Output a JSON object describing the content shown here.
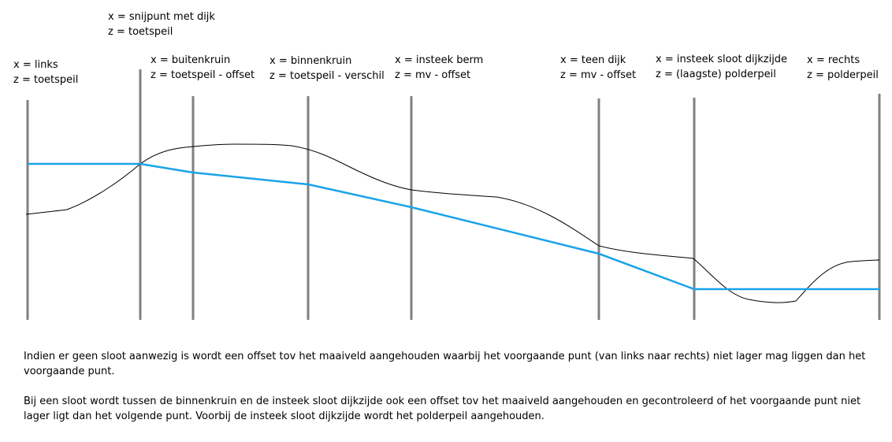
{
  "diagram": {
    "colors": {
      "guide_line": "#808080",
      "terrain_line": "#000000",
      "offset_line": "#1aa3e8"
    },
    "markers": [
      {
        "id": "links",
        "x_label": "x = links",
        "z_label": "z = toetspeil"
      },
      {
        "id": "snijpunt",
        "x_label": "x = snijpunt met dijk",
        "z_label": "z = toetspeil"
      },
      {
        "id": "buitenkruin",
        "x_label": "x = buitenkruin",
        "z_label": "z = toetspeil - offset"
      },
      {
        "id": "binnenkruin",
        "x_label": "x = binnenkruin",
        "z_label": "z = toetspeil - verschil"
      },
      {
        "id": "insteek-berm",
        "x_label": "x = insteek berm",
        "z_label": "z = mv - offset"
      },
      {
        "id": "teen-dijk",
        "x_label": "x = teen dijk",
        "z_label": "z = mv - offset"
      },
      {
        "id": "insteek-sloot",
        "x_label": "x = insteek sloot dijkzijde",
        "z_label": "z = (laagste) polderpeil"
      },
      {
        "id": "rechts",
        "x_label": "x = rechts",
        "z_label": "z = polderpeil"
      }
    ]
  },
  "notes": {
    "paragraph1": "Indien er geen sloot aanwezig is wordt een offset tov het maaiveld aangehouden waarbij het voorgaande punt (van links naar rechts) niet lager mag liggen dan het voorgaande punt.",
    "paragraph2": "Bij een sloot wordt tussen de binnenkruin en de insteek sloot dijkzijde ook een offset tov het maaiveld aangehouden en gecontroleerd of het voorgaande punt niet lager ligt dan het volgende punt. Voorbij de insteek sloot dijkzijde wordt het polderpeil aangehouden."
  }
}
